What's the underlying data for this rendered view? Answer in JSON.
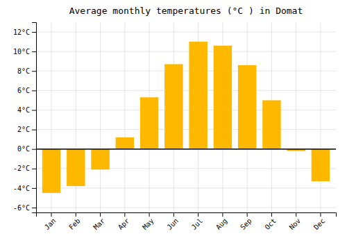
{
  "chart_data": {
    "type": "bar",
    "title": "Average monthly temperatures (°C ) in Domat",
    "categories": [
      "Jan",
      "Feb",
      "Mar",
      "Apr",
      "May",
      "Jun",
      "Jul",
      "Aug",
      "Sep",
      "Oct",
      "Nov",
      "Dec"
    ],
    "values": [
      -4.5,
      -3.8,
      -2.1,
      1.2,
      5.3,
      8.7,
      11.0,
      10.6,
      8.6,
      5.0,
      -0.2,
      -3.3
    ],
    "color": "#FFB800",
    "ylim": [
      -6.5,
      13
    ],
    "yticks": [
      {
        "value": -6,
        "label": "-6°C"
      },
      {
        "value": -4,
        "label": "-4°C"
      },
      {
        "value": -2,
        "label": "-2°C"
      },
      {
        "value": 0,
        "label": "0°C"
      },
      {
        "value": 2,
        "label": "2°C"
      },
      {
        "value": 4,
        "label": "4°C"
      },
      {
        "value": 6,
        "label": "6°C"
      },
      {
        "value": 8,
        "label": "8°C"
      },
      {
        "value": 10,
        "label": "10°C"
      },
      {
        "value": 12,
        "label": "12°C"
      }
    ],
    "grid": true
  }
}
